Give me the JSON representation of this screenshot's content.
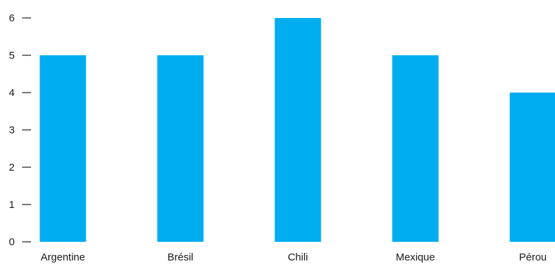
{
  "chart_data": {
    "type": "bar",
    "categories": [
      "Argentine",
      "Brésil",
      "Chili",
      "Mexique",
      "Pérou"
    ],
    "values": [
      5,
      5,
      6,
      5,
      4
    ],
    "title": "",
    "xlabel": "",
    "ylabel": "",
    "ylim": [
      0,
      6
    ],
    "yticks": [
      "0",
      "1",
      "2",
      "3",
      "4",
      "5",
      "6"
    ],
    "grid": false,
    "legend": "none",
    "colors": {
      "bar": "#00AEEF",
      "text": "#1a1a1a"
    }
  }
}
